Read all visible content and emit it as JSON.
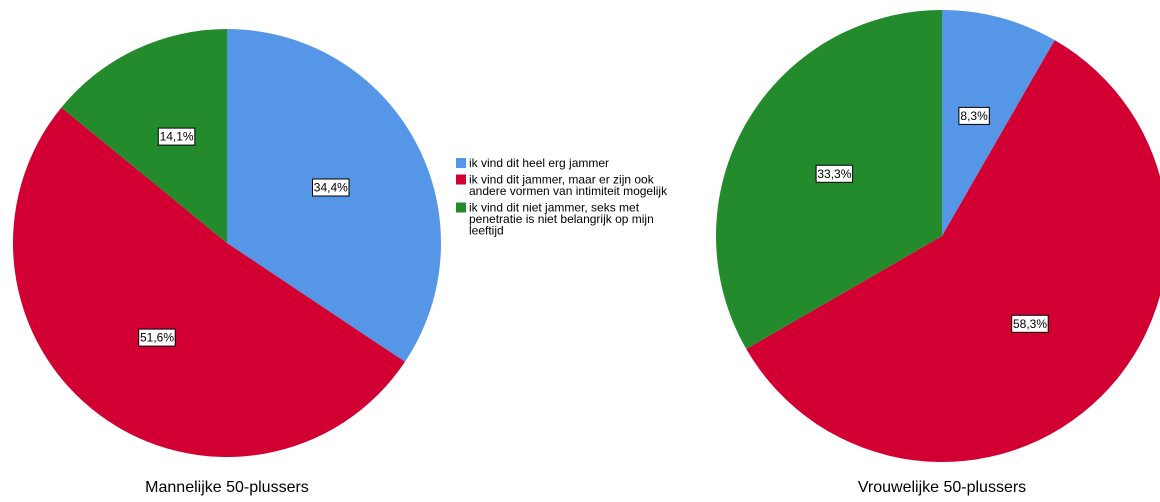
{
  "legend": {
    "items": [
      {
        "color": "#5596E6",
        "lines": [
          "ik vind dit heel erg jammer"
        ]
      },
      {
        "color": "#D20032",
        "lines": [
          "ik vind dit jammer, maar er zijn ook",
          "andere vormen van intimiteit mogelijk"
        ]
      },
      {
        "color": "#238B2C",
        "lines": [
          "ik vind dit niet jammer, seks met",
          "penetratie is niet belangrijk op mijn",
          "leeftijd"
        ]
      }
    ]
  },
  "chart_data": [
    {
      "type": "pie",
      "title": "Mannelijke 50-plussers",
      "start_angle_deg": 0,
      "direction": "clockwise",
      "slices": [
        {
          "label": "ik vind dit heel erg jammer",
          "value": 34.4,
          "display": "34,4%",
          "color": "#5596E6"
        },
        {
          "label": "ik vind dit jammer, maar er zijn ook andere vormen van intimiteit mogelijk",
          "value": 51.6,
          "display": "51,6%",
          "color": "#D20032"
        },
        {
          "label": "ik vind dit niet jammer, seks met penetratie is niet belangrijk op mijn leeftijd",
          "value": 14.1,
          "display": "14,1%",
          "color": "#238B2C"
        }
      ]
    },
    {
      "type": "pie",
      "title": "Vrouwelijke 50-plussers",
      "start_angle_deg": 0,
      "direction": "clockwise",
      "slices": [
        {
          "label": "ik vind dit heel erg jammer",
          "value": 8.3,
          "display": "8,3%",
          "color": "#5596E6"
        },
        {
          "label": "ik vind dit jammer, maar er zijn ook andere vormen van intimiteit mogelijk",
          "value": 58.3,
          "display": "58,3%",
          "color": "#D20032"
        },
        {
          "label": "ik vind dit niet jammer, seks met penetratie is niet belangrijk op mijn leeftijd",
          "value": 33.3,
          "display": "33,3%",
          "color": "#238B2C"
        }
      ]
    }
  ]
}
